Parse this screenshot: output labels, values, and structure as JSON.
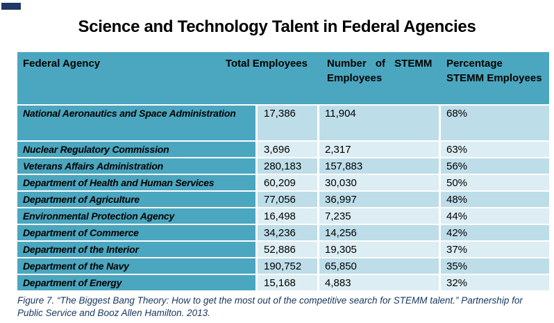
{
  "title": "Science and Technology Talent in Federal Agencies",
  "table": {
    "headers": {
      "agency": "Federal Agency",
      "total": "Total Employees",
      "stemm_line1": "Number of STEMM",
      "stemm_line2": "Employees",
      "pct_line1": "Percentage",
      "pct_line2": "STEMM Employees"
    },
    "rows": [
      {
        "agency": "National Aeronautics and Space Administration",
        "total": "17,386",
        "stemm": "11,904",
        "pct": "68%"
      },
      {
        "agency": "Nuclear Regulatory Commission",
        "total": "3,696",
        "stemm": "2,317",
        "pct": "63%"
      },
      {
        "agency": "Veterans Affairs Administration",
        "total": "280,183",
        "stemm": "157,883",
        "pct": "56%"
      },
      {
        "agency": "Department of Health and Human Services",
        "total": "60,209",
        "stemm": "30,030",
        "pct": "50%"
      },
      {
        "agency": "Department of Agriculture",
        "total": "77,056",
        "stemm": "36,997",
        "pct": "48%"
      },
      {
        "agency": "Environmental Protection Agency",
        "total": "16,498",
        "stemm": "7,235",
        "pct": "44%"
      },
      {
        "agency": "Department of Commerce",
        "total": "34,236",
        "stemm": "14,256",
        "pct": "42%"
      },
      {
        "agency": "Department of the Interior",
        "total": "52,886",
        "stemm": "19,305",
        "pct": "37%"
      },
      {
        "agency": "Department of the Navy",
        "total": "190,752",
        "stemm": "65,850",
        "pct": "35%"
      },
      {
        "agency": "Department of Energy",
        "total": "15,168",
        "stemm": "4,883",
        "pct": "32%"
      }
    ]
  },
  "caption": "Figure 7. “The Biggest Bang Theory: How to get the most out of the competitive search for STEMM talent.” Partnership for Public Service and Booz Allen Hamilton. 2013.",
  "colors": {
    "header_teal": "#4BA6BF",
    "row_blue_medium": "#BDDDE9",
    "row_blue_light": "#DCEDF3",
    "corner_bar_navy": "#1F3864",
    "caption_blue": "#17365D"
  }
}
